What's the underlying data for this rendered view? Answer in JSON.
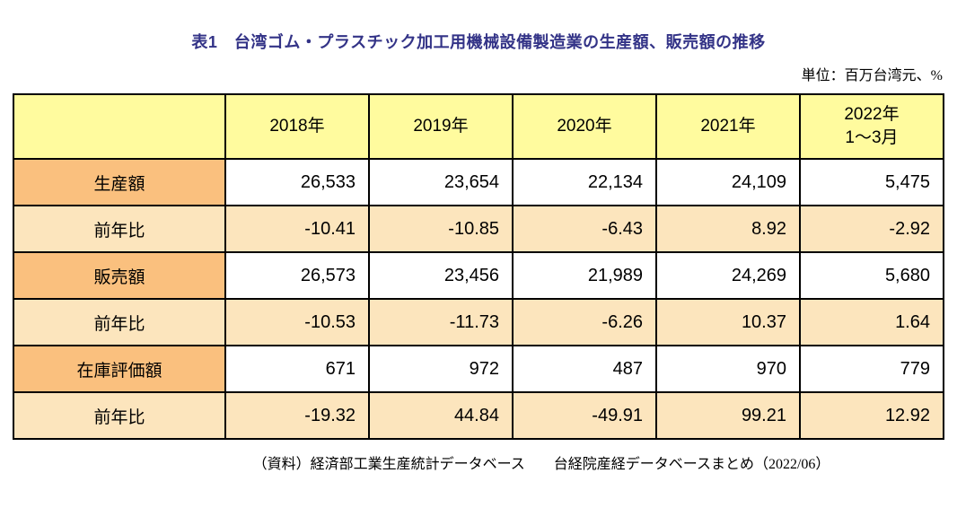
{
  "title": "表1　台湾ゴム・プラスチック加工用機械設備製造業の生産額、販売額の推移",
  "unit_note": "単位：百万台湾元、%",
  "source_note": "（資料）経済部工業生産統計データベース　　台経院産経データベースまとめ（2022/06）",
  "colors": {
    "title_text": "#333387",
    "header_bg": "#FFFB9E",
    "metric_label_bg": "#FAC07E",
    "ratio_row_bg": "#FCE5BD",
    "amount_cell_bg": "#FFFFFF",
    "grid_border": "#000000"
  },
  "chart_data": {
    "type": "table",
    "title": "表1　台湾ゴム・プラスチック加工用機械設備製造業の生産額、販売額の推移",
    "unit": "百万台湾元、%",
    "columns": [
      "",
      "2018年",
      "2019年",
      "2020年",
      "2021年",
      "2022年\n1〜3月"
    ],
    "rows": [
      {
        "label": "生産額",
        "kind": "amount",
        "values": [
          "26,533",
          "23,654",
          "22,134",
          "24,109",
          "5,475"
        ]
      },
      {
        "label": "前年比",
        "kind": "ratio",
        "values": [
          "-10.41",
          "-10.85",
          "-6.43",
          "8.92",
          "-2.92"
        ]
      },
      {
        "label": "販売額",
        "kind": "amount",
        "values": [
          "26,573",
          "23,456",
          "21,989",
          "24,269",
          "5,680"
        ]
      },
      {
        "label": "前年比",
        "kind": "ratio",
        "values": [
          "-10.53",
          "-11.73",
          "-6.26",
          "10.37",
          "1.64"
        ]
      },
      {
        "label": "在庫評価額",
        "kind": "amount",
        "values": [
          "671",
          "972",
          "487",
          "970",
          "779"
        ]
      },
      {
        "label": "前年比",
        "kind": "ratio",
        "values": [
          "-19.32",
          "44.84",
          "-49.91",
          "99.21",
          "12.92"
        ]
      }
    ]
  }
}
